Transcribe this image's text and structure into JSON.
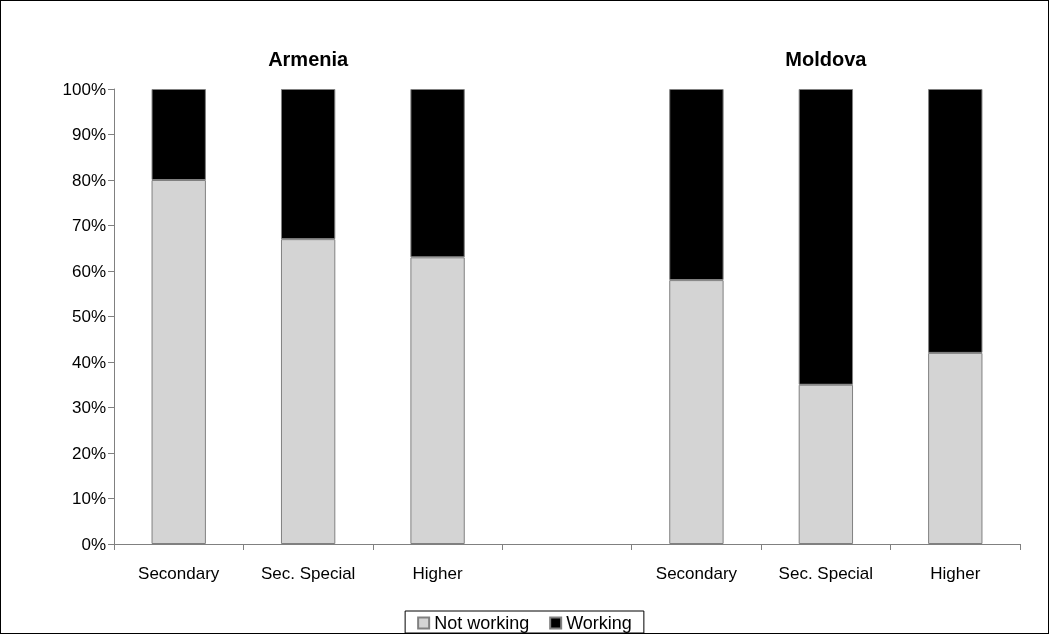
{
  "chart_data": {
    "type": "bar",
    "stacked": true,
    "categories": [
      "Secondary",
      "Sec. Special",
      "Higher",
      null,
      "Secondary",
      "Sec. Special",
      "Higher"
    ],
    "series": [
      {
        "name": "Not working",
        "color": "#d4d4d4",
        "values": [
          80,
          67,
          63,
          null,
          58,
          35,
          42
        ]
      },
      {
        "name": "Working",
        "color": "#000000",
        "values": [
          20,
          33,
          37,
          null,
          42,
          65,
          58
        ]
      }
    ],
    "ylim": [
      0,
      100
    ],
    "yticks": [
      {
        "value": 0,
        "label": "0%"
      },
      {
        "value": 10,
        "label": "10%"
      },
      {
        "value": 20,
        "label": "20%"
      },
      {
        "value": 30,
        "label": "30%"
      },
      {
        "value": 40,
        "label": "40%"
      },
      {
        "value": 50,
        "label": "50%"
      },
      {
        "value": 60,
        "label": "60%"
      },
      {
        "value": 70,
        "label": "70%"
      },
      {
        "value": 80,
        "label": "80%"
      },
      {
        "value": 90,
        "label": "90%"
      },
      {
        "value": 100,
        "label": "100%"
      }
    ],
    "annotations": [
      "Armenia",
      "Moldova"
    ],
    "grid": false,
    "legend": "bottom"
  }
}
